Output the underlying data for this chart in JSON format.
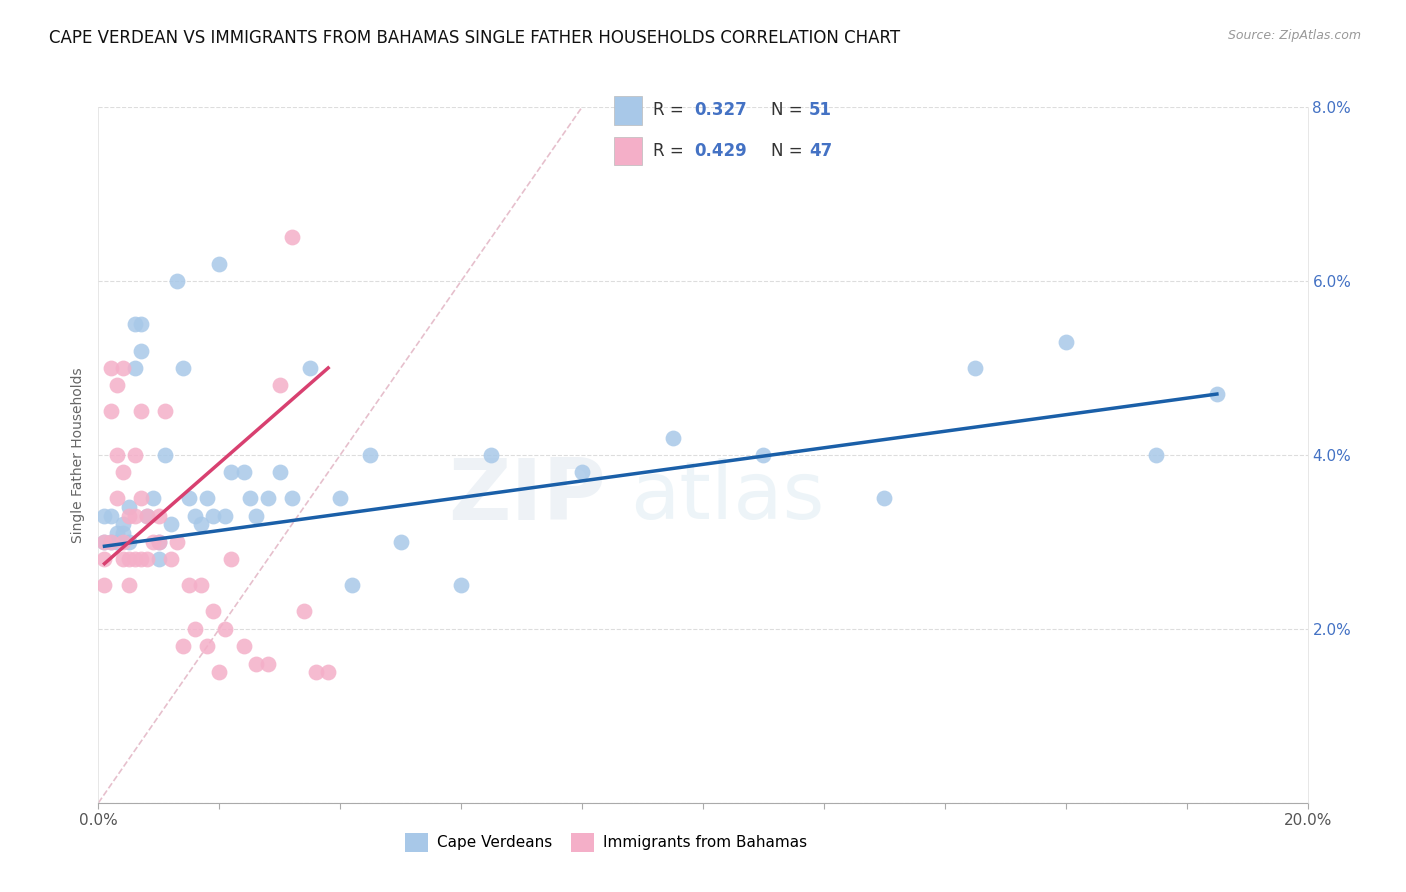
{
  "title": "CAPE VERDEAN VS IMMIGRANTS FROM BAHAMAS SINGLE FATHER HOUSEHOLDS CORRELATION CHART",
  "source": "Source: ZipAtlas.com",
  "ylabel": "Single Father Households",
  "xlim": [
    0,
    0.2
  ],
  "ylim": [
    0,
    0.08
  ],
  "xticks": [
    0.0,
    0.02,
    0.04,
    0.06,
    0.08,
    0.1,
    0.12,
    0.14,
    0.16,
    0.18,
    0.2
  ],
  "yticks": [
    0.0,
    0.02,
    0.04,
    0.06,
    0.08
  ],
  "xtick_labels": [
    "0.0%",
    "",
    "",
    "",
    "",
    "",
    "",
    "",
    "",
    "",
    "20.0%"
  ],
  "ytick_right_labels": [
    "",
    "2.0%",
    "4.0%",
    "6.0%",
    "8.0%"
  ],
  "blue_r": "0.327",
  "blue_n": "51",
  "pink_r": "0.429",
  "pink_n": "47",
  "blue_fill": "#a8c8e8",
  "pink_fill": "#f4afc8",
  "blue_line": "#1a5fa8",
  "pink_line": "#d84070",
  "diag_color": "#e0b0c0",
  "watermark_zip": "ZIP",
  "watermark_atlas": "atlas",
  "accent_color": "#4472C4",
  "blue_x": [
    0.001,
    0.001,
    0.002,
    0.002,
    0.003,
    0.003,
    0.004,
    0.004,
    0.005,
    0.005,
    0.006,
    0.006,
    0.007,
    0.007,
    0.008,
    0.009,
    0.01,
    0.01,
    0.011,
    0.012,
    0.013,
    0.014,
    0.015,
    0.016,
    0.017,
    0.018,
    0.019,
    0.02,
    0.021,
    0.022,
    0.024,
    0.025,
    0.026,
    0.028,
    0.03,
    0.032,
    0.035,
    0.04,
    0.042,
    0.045,
    0.05,
    0.06,
    0.065,
    0.08,
    0.095,
    0.11,
    0.13,
    0.145,
    0.16,
    0.175,
    0.185
  ],
  "blue_y": [
    0.03,
    0.033,
    0.03,
    0.033,
    0.03,
    0.031,
    0.032,
    0.031,
    0.034,
    0.03,
    0.055,
    0.05,
    0.055,
    0.052,
    0.033,
    0.035,
    0.028,
    0.03,
    0.04,
    0.032,
    0.06,
    0.05,
    0.035,
    0.033,
    0.032,
    0.035,
    0.033,
    0.062,
    0.033,
    0.038,
    0.038,
    0.035,
    0.033,
    0.035,
    0.038,
    0.035,
    0.05,
    0.035,
    0.025,
    0.04,
    0.03,
    0.025,
    0.04,
    0.038,
    0.042,
    0.04,
    0.035,
    0.05,
    0.053,
    0.04,
    0.047
  ],
  "pink_x": [
    0.001,
    0.001,
    0.001,
    0.002,
    0.002,
    0.002,
    0.003,
    0.003,
    0.003,
    0.004,
    0.004,
    0.004,
    0.004,
    0.005,
    0.005,
    0.005,
    0.006,
    0.006,
    0.006,
    0.007,
    0.007,
    0.007,
    0.008,
    0.008,
    0.009,
    0.01,
    0.01,
    0.011,
    0.012,
    0.013,
    0.014,
    0.015,
    0.016,
    0.017,
    0.018,
    0.019,
    0.02,
    0.021,
    0.022,
    0.024,
    0.026,
    0.028,
    0.03,
    0.032,
    0.034,
    0.036,
    0.038
  ],
  "pink_y": [
    0.028,
    0.03,
    0.025,
    0.05,
    0.045,
    0.03,
    0.04,
    0.048,
    0.035,
    0.05,
    0.038,
    0.03,
    0.028,
    0.033,
    0.028,
    0.025,
    0.04,
    0.033,
    0.028,
    0.045,
    0.035,
    0.028,
    0.033,
    0.028,
    0.03,
    0.033,
    0.03,
    0.045,
    0.028,
    0.03,
    0.018,
    0.025,
    0.02,
    0.025,
    0.018,
    0.022,
    0.015,
    0.02,
    0.028,
    0.018,
    0.016,
    0.016,
    0.048,
    0.065,
    0.022,
    0.015,
    0.015
  ]
}
